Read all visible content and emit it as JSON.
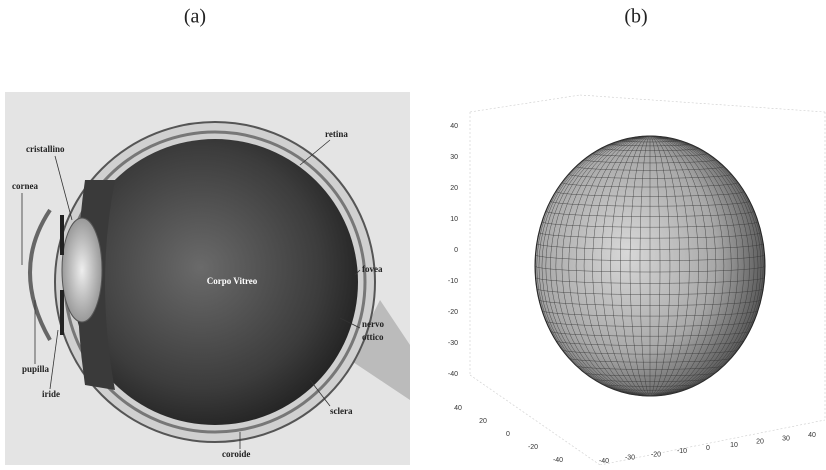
{
  "panels": [
    {
      "label": "(a)",
      "annotations": {
        "retina": "retina",
        "lens": "cristallino",
        "cornea": "cornea",
        "vitreous": "Corpo Vitreo",
        "fovea": "fovea",
        "nerve": [
          "nervo",
          "ottico"
        ],
        "pupil": "pupilla",
        "iris": "iride",
        "sclera": "sclera",
        "choroid": "coroide"
      }
    },
    {
      "label": "(b)",
      "zticks": [
        40,
        30,
        20,
        10,
        0,
        -10,
        -20,
        -30,
        -40
      ],
      "xticks": [
        40,
        20,
        0,
        -20,
        -40
      ],
      "yticks": [
        -40,
        -30,
        -20,
        -10,
        0,
        10,
        20,
        30,
        40
      ]
    }
  ]
}
